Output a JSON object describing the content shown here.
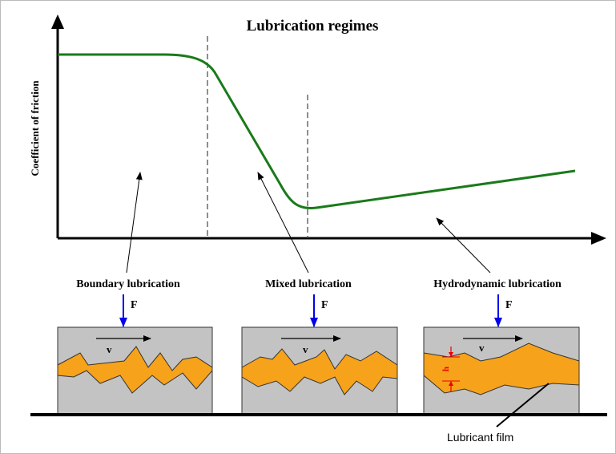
{
  "title": "Lubrication regimes",
  "y_axis_label": "Coefficient of friction",
  "regimes": [
    {
      "label": "Boundary lubrication",
      "force": "F",
      "velocity": "v"
    },
    {
      "label": "Mixed lubrication",
      "force": "F",
      "velocity": "v"
    },
    {
      "label": "Hydrodynamic lubrication",
      "force": "F",
      "velocity": "v"
    }
  ],
  "film_thickness": "h",
  "film_label": "Lubricant film"
}
